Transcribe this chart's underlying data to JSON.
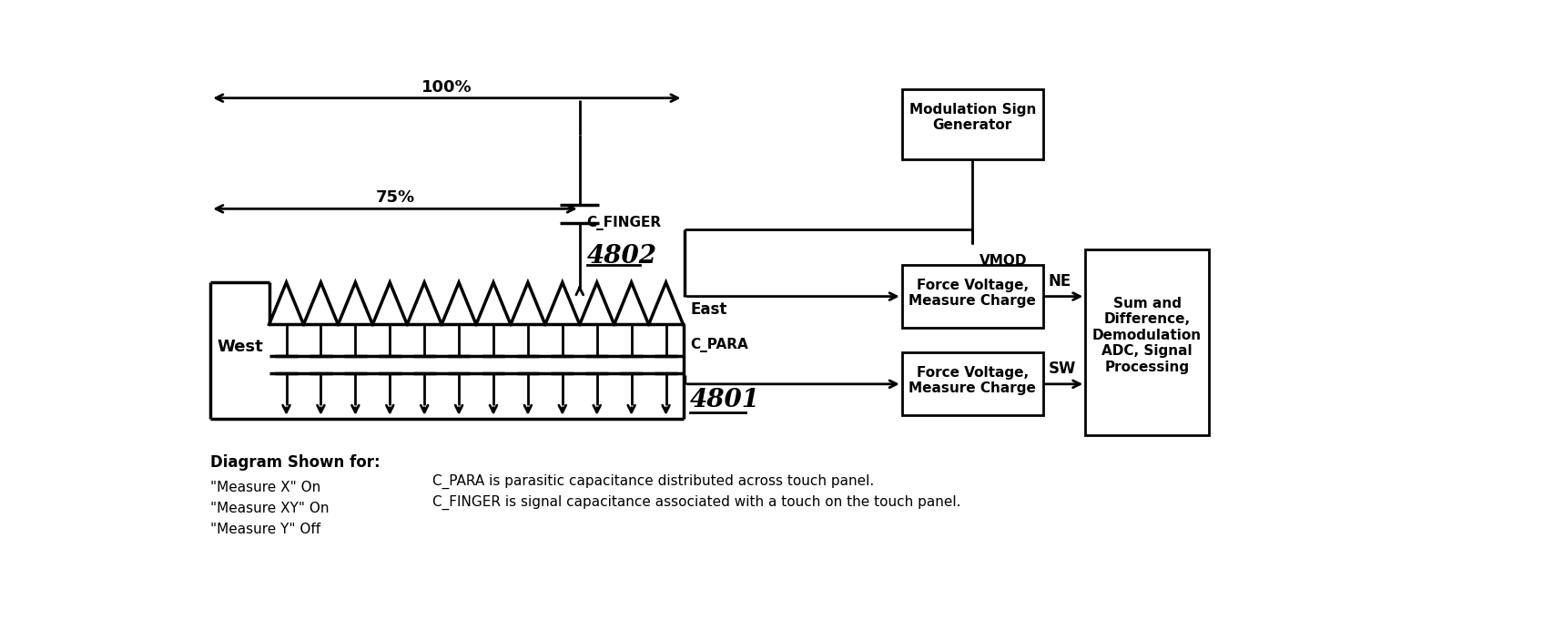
{
  "bg_color": "#ffffff",
  "line_color": "#000000",
  "figsize": [
    16.95,
    6.92
  ],
  "dpi": 100,
  "west_label": "West",
  "east_label": "East",
  "num_teeth": 12,
  "annotation_100pct": "100%",
  "annotation_75pct": "75%",
  "cfinger_label": "C_FINGER",
  "cfinger_num": "4802",
  "cpara_label": "C_PARA",
  "cpara_num": "4801",
  "vmod_label": "VMOD",
  "ne_label": "NE",
  "sw_label": "SW",
  "box_mod_sign": "Modulation Sign\nGenerator",
  "box_force_ne": "Force Voltage,\nMeasure Charge",
  "box_force_sw": "Force Voltage,\nMeasure Charge",
  "box_sum": "Sum and\nDifference,\nDemodulation\nADC, Signal\nProcessing",
  "note1": "Diagram Shown for:",
  "note2": "\"Measure X\" On",
  "note3": "\"Measure XY\" On",
  "note4": "\"Measure Y\" Off",
  "note5": "C_PARA is parasitic capacitance distributed across touch panel.",
  "note6": "C_FINGER is signal capacitance associated with a touch on the touch panel."
}
